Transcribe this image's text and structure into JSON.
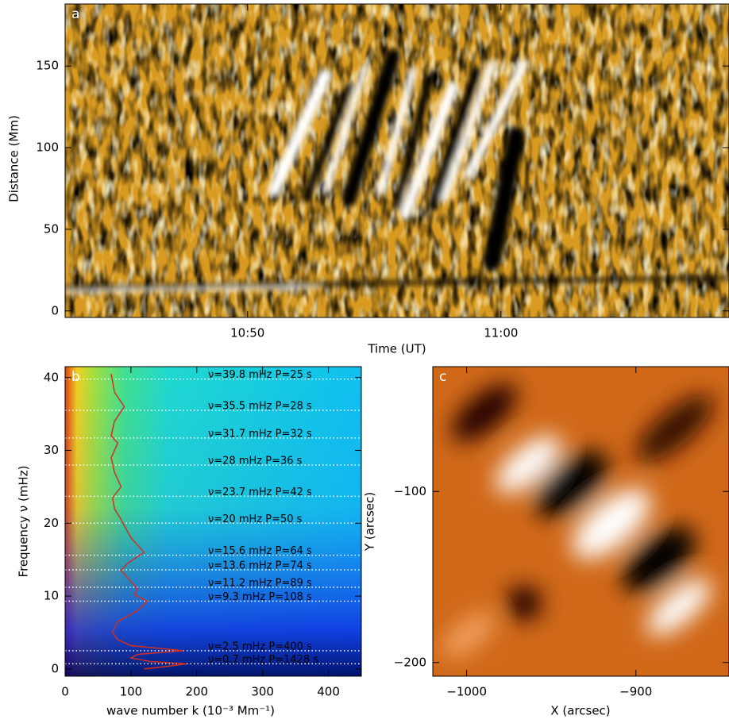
{
  "chart_data": [
    {
      "type": "heatmap",
      "label": "a",
      "xlabel": "Time (UT)",
      "ylabel": "Distance (Mm)",
      "xlim": [
        642.8,
        669.0
      ],
      "ylim": [
        -4,
        188
      ],
      "xticks": [
        {
          "value": 650,
          "label": "10:50"
        },
        {
          "value": 660,
          "label": "11:00"
        }
      ],
      "yticks": [
        0,
        50,
        100,
        150
      ]
    },
    {
      "type": "line",
      "label": "b",
      "xlabel": "wave number k (10⁻³ Mm⁻¹)",
      "ylabel": "Frequency ν (mHz)",
      "xlim": [
        0,
        450
      ],
      "ylim": [
        -1,
        41.5
      ],
      "xticks": [
        0,
        100,
        200,
        300,
        400
      ],
      "yticks": [
        0,
        10,
        20,
        30,
        40
      ],
      "series": [
        {
          "color": "#d03020",
          "x": [
            70,
            75,
            90,
            75,
            70,
            80,
            70,
            75,
            85,
            72,
            75,
            85,
            100,
            120,
            95,
            85,
            95,
            110,
            105,
            125,
            110,
            80,
            72,
            80,
            100,
            180,
            110,
            100,
            130,
            185,
            150,
            120
          ],
          "values": [
            40.5,
            38,
            36,
            34,
            32,
            31,
            29,
            27,
            25,
            23.5,
            22,
            20.5,
            18,
            16,
            14.5,
            13.5,
            12.5,
            11,
            10.2,
            9.3,
            8,
            6.5,
            5,
            4,
            3.2,
            2.5,
            2,
            1.5,
            1,
            0.7,
            0.3,
            0
          ]
        }
      ],
      "annotations": [
        {
          "y": 39.8,
          "text": "ν=39.8 mHz P=25 s"
        },
        {
          "y": 35.5,
          "text": "ν=35.5 mHz P=28 s"
        },
        {
          "y": 31.7,
          "text": "ν=31.7 mHz P=32 s"
        },
        {
          "y": 28,
          "text": "ν=28 mHz    P=36 s"
        },
        {
          "y": 23.7,
          "text": "ν=23.7 mHz P=42 s"
        },
        {
          "y": 20,
          "text": "ν=20 mHz    P=50 s"
        },
        {
          "y": 15.6,
          "text": "ν=15.6 mHz P=64 s"
        },
        {
          "y": 13.6,
          "text": "ν=13.6 mHz P=74 s"
        },
        {
          "y": 11.2,
          "text": "ν=11.2 mHz P=89 s"
        },
        {
          "y": 9.3,
          "text": "ν=9.3 mHz   P=108 s"
        },
        {
          "y": 2.5,
          "text": "ν=2.5 mHz P=400 s"
        },
        {
          "y": 0.7,
          "text": "ν=0.7 mHz P=1428 s"
        }
      ]
    },
    {
      "type": "heatmap",
      "label": "c",
      "xlabel": "X (arcsec)",
      "ylabel": "Y (arcsec)",
      "xlim": [
        -1020,
        -845
      ],
      "ylim": [
        -208,
        -27
      ],
      "xticks": [
        {
          "value": -1000,
          "label": "−1000"
        },
        {
          "value": -900,
          "label": "−900"
        }
      ],
      "yticks": [
        {
          "value": -200,
          "label": "−200"
        },
        {
          "value": -100,
          "label": "−100"
        }
      ]
    }
  ]
}
